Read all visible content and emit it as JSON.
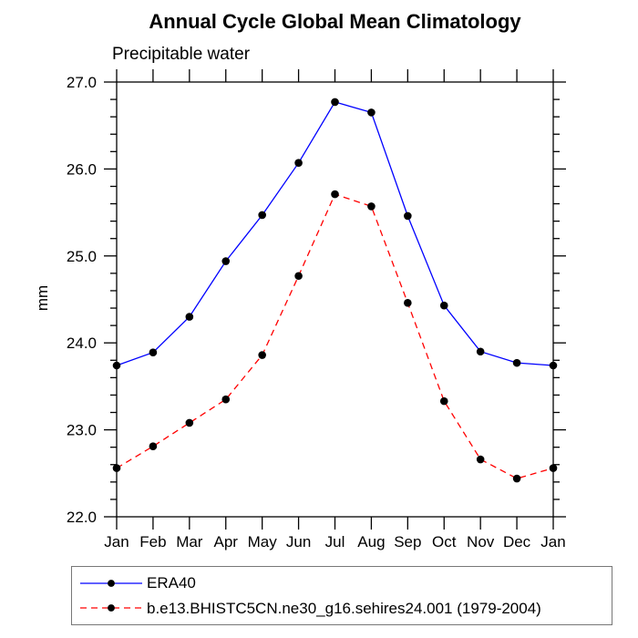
{
  "title": "Annual Cycle Global Mean Climatology",
  "subtitle": "Precipitable water",
  "ylabel": "mm",
  "colors": {
    "era40_line": "#0000ff",
    "model_line": "#ff0000",
    "marker": "#000000",
    "axis": "#000000",
    "legend_border": "#777777"
  },
  "legend": {
    "entries": [
      {
        "label": "ERA40",
        "color": "#0000ff",
        "style": "solid"
      },
      {
        "label": "b.e13.BHISTC5CN.ne30_g16.sehires24.001 (1979-2004)",
        "color": "#ff0000",
        "style": "dashed"
      }
    ]
  },
  "chart_data": {
    "type": "line",
    "title": "Annual Cycle Global Mean Climatology",
    "subtitle": "Precipitable water",
    "xlabel": "",
    "ylabel": "mm",
    "categories": [
      "Jan",
      "Feb",
      "Mar",
      "Apr",
      "May",
      "Jun",
      "Jul",
      "Aug",
      "Sep",
      "Oct",
      "Nov",
      "Dec",
      "Jan"
    ],
    "series": [
      {
        "name": "ERA40",
        "color": "#0000ff",
        "dash": "solid",
        "marker": "filled-circle",
        "values": [
          23.74,
          23.89,
          24.3,
          24.94,
          25.47,
          26.07,
          26.77,
          26.65,
          25.46,
          24.43,
          23.9,
          23.77,
          23.74
        ]
      },
      {
        "name": "b.e13.BHISTC5CN.ne30_g16.sehires24.001 (1979-2004)",
        "color": "#ff0000",
        "dash": "dashed",
        "marker": "filled-circle",
        "values": [
          22.56,
          22.81,
          23.08,
          23.35,
          23.86,
          24.77,
          25.71,
          25.57,
          24.46,
          23.33,
          22.66,
          22.44,
          22.56
        ]
      }
    ],
    "ylim": [
      22.0,
      27.0
    ],
    "ytick_major": [
      22.0,
      23.0,
      24.0,
      25.0,
      26.0,
      27.0
    ],
    "ytick_labels": [
      "22.0",
      "23.0",
      "24.0",
      "25.0",
      "26.0",
      "27.0"
    ],
    "ytick_minor_step": 0.2,
    "grid": false,
    "frame": "box-with-outward-ticks",
    "legend_position": "bottom"
  }
}
